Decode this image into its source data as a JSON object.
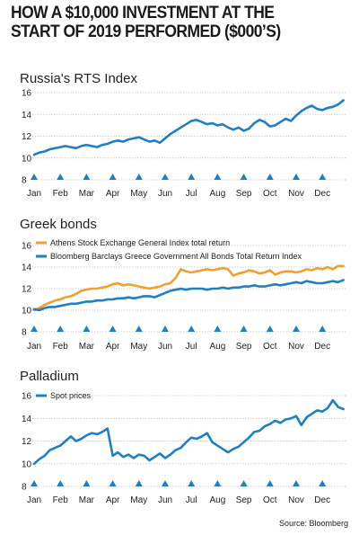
{
  "title": "HOW A $10,000 INVESTMENT AT THE START OF 2019 PERFORMED ($000’S)",
  "source": "Source: Bloomberg",
  "colors": {
    "blue": "#1f7fc1",
    "orange": "#f0a030",
    "marker": "#1f7fc1",
    "grid": "#bfbfbf"
  },
  "chart_data": [
    {
      "type": "line",
      "title": "Russia's RTS  Index",
      "months": [
        "Jan",
        "Feb",
        "Mar",
        "Apr",
        "May",
        "Jun",
        "Jul",
        "Aug",
        "Sep",
        "Oct",
        "Nov",
        "Dec"
      ],
      "ylim": [
        8,
        16
      ],
      "yticks": [
        8,
        10,
        12,
        14,
        16
      ],
      "series": [
        {
          "color": "#1f7fc1",
          "x": [
            0,
            0.2,
            0.4,
            0.6,
            0.8,
            1.0,
            1.2,
            1.4,
            1.6,
            1.8,
            2.0,
            2.2,
            2.4,
            2.6,
            2.8,
            3.0,
            3.2,
            3.4,
            3.6,
            3.8,
            4.0,
            4.2,
            4.4,
            4.6,
            4.8,
            5.0,
            5.2,
            5.4,
            5.6,
            5.8,
            6.0,
            6.2,
            6.4,
            6.6,
            6.8,
            7.0,
            7.2,
            7.4,
            7.6,
            7.8,
            8.0,
            8.2,
            8.4,
            8.6,
            8.8,
            9.0,
            9.2,
            9.4,
            9.6,
            9.8,
            10.0,
            10.2,
            10.4,
            10.6,
            10.8,
            11.0,
            11.2,
            11.4,
            11.6,
            11.8
          ],
          "y": [
            10.3,
            10.5,
            10.6,
            10.8,
            10.9,
            11.0,
            11.1,
            11.0,
            10.9,
            11.1,
            11.2,
            11.1,
            11.0,
            11.2,
            11.3,
            11.5,
            11.6,
            11.5,
            11.7,
            11.8,
            11.9,
            11.7,
            11.5,
            11.6,
            11.4,
            11.8,
            12.2,
            12.5,
            12.8,
            13.1,
            13.4,
            13.5,
            13.3,
            13.1,
            13.2,
            13.0,
            13.1,
            12.8,
            12.6,
            12.8,
            12.5,
            12.7,
            13.2,
            13.5,
            13.3,
            12.9,
            13.0,
            13.3,
            13.6,
            13.4,
            13.9,
            14.3,
            14.6,
            14.8,
            14.5,
            14.4,
            14.6,
            14.7,
            14.9,
            15.3
          ]
        }
      ]
    },
    {
      "type": "line",
      "title": "Greek bonds",
      "months": [
        "Jan",
        "Feb",
        "Mar",
        "Apr",
        "May",
        "Jun",
        "Jul",
        "Aug",
        "Sep",
        "Oct",
        "Nov",
        "Dec"
      ],
      "ylim": [
        8,
        16
      ],
      "yticks": [
        8,
        10,
        12,
        14,
        16
      ],
      "series": [
        {
          "name": "Athens Stock Exchange General Index total return",
          "color": "#f0a030",
          "x": [
            0,
            0.2,
            0.4,
            0.6,
            0.8,
            1.0,
            1.2,
            1.4,
            1.6,
            1.8,
            2.0,
            2.2,
            2.4,
            2.6,
            2.8,
            3.0,
            3.2,
            3.4,
            3.6,
            3.8,
            4.0,
            4.2,
            4.4,
            4.6,
            4.8,
            5.0,
            5.2,
            5.4,
            5.6,
            5.8,
            6.0,
            6.2,
            6.4,
            6.6,
            6.8,
            7.0,
            7.2,
            7.4,
            7.6,
            7.8,
            8.0,
            8.2,
            8.4,
            8.6,
            8.8,
            9.0,
            9.2,
            9.4,
            9.6,
            9.8,
            10.0,
            10.2,
            10.4,
            10.6,
            10.8,
            11.0,
            11.2,
            11.4,
            11.6,
            11.8
          ],
          "y": [
            10.0,
            10.2,
            10.5,
            10.7,
            10.9,
            11.0,
            11.2,
            11.3,
            11.5,
            11.8,
            11.9,
            12.0,
            12.0,
            12.1,
            12.2,
            12.4,
            12.5,
            12.3,
            12.4,
            12.3,
            12.2,
            12.1,
            12.0,
            12.1,
            12.2,
            12.4,
            12.5,
            13.0,
            13.8,
            13.6,
            13.5,
            13.6,
            13.7,
            13.8,
            13.7,
            13.8,
            13.9,
            13.8,
            13.2,
            13.4,
            13.5,
            13.7,
            13.6,
            13.4,
            13.5,
            13.7,
            13.3,
            13.5,
            13.6,
            13.6,
            13.5,
            13.6,
            13.8,
            13.7,
            13.9,
            13.8,
            14.0,
            13.8,
            14.1,
            14.1
          ]
        },
        {
          "name": "Bloomberg Barclays Greece Government All Bonds Total Return Index",
          "color": "#1f7fc1",
          "x": [
            0,
            0.2,
            0.4,
            0.6,
            0.8,
            1.0,
            1.2,
            1.4,
            1.6,
            1.8,
            2.0,
            2.2,
            2.4,
            2.6,
            2.8,
            3.0,
            3.2,
            3.4,
            3.6,
            3.8,
            4.0,
            4.2,
            4.4,
            4.6,
            4.8,
            5.0,
            5.2,
            5.4,
            5.6,
            5.8,
            6.0,
            6.2,
            6.4,
            6.6,
            6.8,
            7.0,
            7.2,
            7.4,
            7.6,
            7.8,
            8.0,
            8.2,
            8.4,
            8.6,
            8.8,
            9.0,
            9.2,
            9.4,
            9.6,
            9.8,
            10.0,
            10.2,
            10.4,
            10.6,
            10.8,
            11.0,
            11.2,
            11.4,
            11.6,
            11.8
          ],
          "y": [
            10.1,
            10.0,
            10.2,
            10.3,
            10.3,
            10.4,
            10.5,
            10.6,
            10.6,
            10.7,
            10.8,
            10.8,
            10.9,
            10.9,
            11.0,
            11.0,
            11.1,
            11.1,
            11.2,
            11.1,
            11.2,
            11.3,
            11.3,
            11.2,
            11.4,
            11.6,
            11.8,
            11.9,
            12.0,
            11.9,
            12.0,
            12.0,
            12.0,
            11.9,
            12.0,
            12.0,
            12.1,
            12.0,
            12.1,
            12.1,
            12.2,
            12.2,
            12.3,
            12.2,
            12.2,
            12.3,
            12.4,
            12.3,
            12.4,
            12.5,
            12.6,
            12.5,
            12.7,
            12.6,
            12.5,
            12.5,
            12.6,
            12.7,
            12.6,
            12.8
          ]
        }
      ]
    },
    {
      "type": "line",
      "title": "Palladium",
      "months": [
        "Jan",
        "Feb",
        "Mar",
        "Apr",
        "May",
        "Jun",
        "Jul",
        "Aug",
        "Sep",
        "Oct",
        "Nov",
        "Dec"
      ],
      "ylim": [
        8,
        16
      ],
      "yticks": [
        8,
        10,
        12,
        14,
        16
      ],
      "series": [
        {
          "name": "Spot prices",
          "color": "#1f7fc1",
          "x": [
            0,
            0.2,
            0.4,
            0.6,
            0.8,
            1.0,
            1.2,
            1.4,
            1.6,
            1.8,
            2.0,
            2.2,
            2.4,
            2.6,
            2.8,
            3.0,
            3.2,
            3.4,
            3.6,
            3.8,
            4.0,
            4.2,
            4.4,
            4.6,
            4.8,
            5.0,
            5.2,
            5.4,
            5.6,
            5.8,
            6.0,
            6.2,
            6.4,
            6.6,
            6.8,
            7.0,
            7.2,
            7.4,
            7.6,
            7.8,
            8.0,
            8.2,
            8.4,
            8.6,
            8.8,
            9.0,
            9.2,
            9.4,
            9.6,
            9.8,
            10.0,
            10.2,
            10.4,
            10.6,
            10.8,
            11.0,
            11.2,
            11.4,
            11.6,
            11.8
          ],
          "y": [
            10.0,
            10.4,
            10.7,
            11.2,
            11.4,
            11.6,
            12.0,
            12.4,
            12.0,
            12.2,
            12.5,
            12.7,
            12.6,
            12.8,
            13.1,
            10.7,
            11.0,
            10.6,
            10.8,
            10.5,
            10.8,
            10.7,
            10.3,
            10.6,
            10.9,
            10.5,
            10.8,
            11.2,
            11.4,
            11.9,
            12.3,
            12.2,
            12.4,
            12.7,
            11.9,
            11.6,
            11.3,
            11.0,
            11.3,
            11.5,
            11.9,
            12.3,
            12.8,
            12.9,
            13.3,
            13.5,
            13.8,
            13.6,
            13.9,
            14.0,
            14.2,
            13.4,
            14.1,
            14.4,
            14.7,
            14.6,
            14.9,
            15.6,
            15.0,
            14.8
          ]
        }
      ]
    }
  ]
}
